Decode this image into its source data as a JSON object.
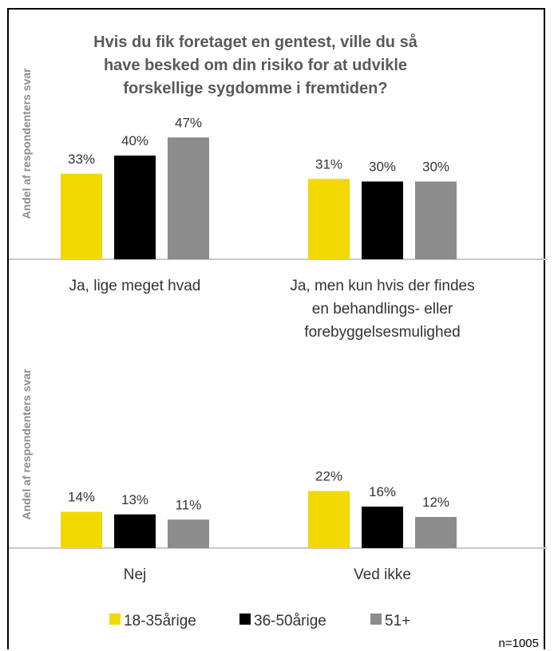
{
  "chart_data": {
    "type": "bar",
    "title_lines": [
      "Hvis du fik foretaget  en gentest,  ville du så",
      "have besked  om din risiko for at udvikle",
      "forskellige sygdomme   i fremtiden?"
    ],
    "ylabel": "Andel af respondenters svar",
    "panels": [
      {
        "categories": [
          [
            "Ja, lige meget  hvad"
          ],
          [
            "Ja, men  kun hvis der findes",
            "en behandlings-  eller",
            "forebyggelsesmulighed"
          ]
        ],
        "series": [
          {
            "name": "18-35årige",
            "values": [
              33,
              31
            ]
          },
          {
            "name": "36-50årige",
            "values": [
              40,
              30
            ]
          },
          {
            "name": "51+",
            "values": [
              47,
              30
            ]
          }
        ]
      },
      {
        "categories": [
          [
            "Nej"
          ],
          [
            "Ved ikke"
          ]
        ],
        "series": [
          {
            "name": "18-35årige",
            "values": [
              14,
              22
            ]
          },
          {
            "name": "36-50årige",
            "values": [
              13,
              16
            ]
          },
          {
            "name": "51+",
            "values": [
              11,
              12
            ]
          }
        ]
      }
    ],
    "unit": "%",
    "legend_position": "bottom",
    "colors": [
      "#f2d900",
      "#000000",
      "#8c8c8c"
    ],
    "note": "n=1005"
  }
}
